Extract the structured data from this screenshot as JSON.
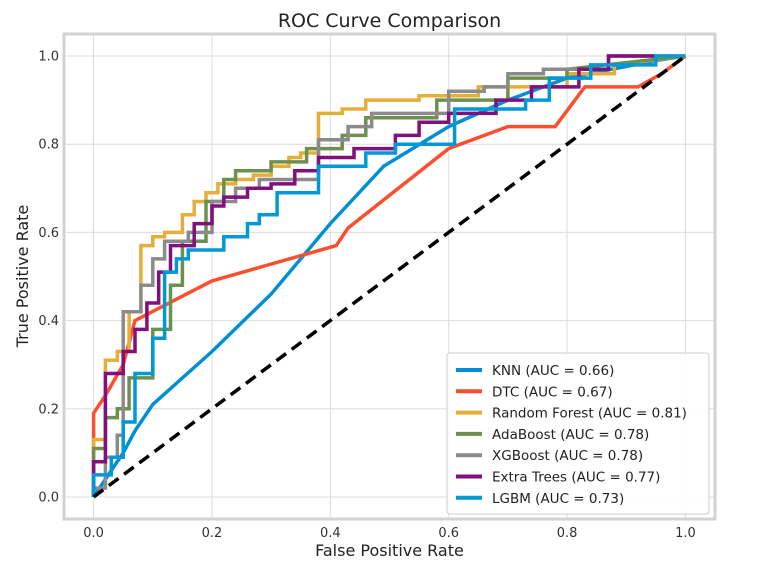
{
  "chart_data": {
    "type": "line",
    "title": "ROC Curve Comparison",
    "xlabel": "False Positive Rate",
    "ylabel": "True Positive Rate",
    "xlim": [
      -0.05,
      1.05
    ],
    "ylim": [
      -0.05,
      1.05
    ],
    "grid": true,
    "legend_position": "lower-right",
    "x_ticks": [
      "0.0",
      "0.2",
      "0.4",
      "0.6",
      "0.8",
      "1.0"
    ],
    "y_ticks": [
      "0.0",
      "0.2",
      "0.4",
      "0.6",
      "0.8",
      "1.0"
    ],
    "diagonal": {
      "x": [
        0,
        1
      ],
      "y": [
        0,
        1
      ],
      "color": "#000000",
      "style": "dashed"
    },
    "series": [
      {
        "name": "KNN (AUC = 0.66)",
        "color": "#008fd5",
        "x": [
          0,
          0.03,
          0.05,
          0.07,
          0.1,
          0.2,
          0.3,
          0.4,
          0.49,
          0.6,
          0.7,
          0.8,
          0.95,
          1.0
        ],
        "y": [
          0,
          0.06,
          0.1,
          0.15,
          0.21,
          0.33,
          0.46,
          0.62,
          0.75,
          0.84,
          0.9,
          0.95,
          0.99,
          1.0
        ]
      },
      {
        "name": "DTC (AUC = 0.67)",
        "color": "#fc4f30",
        "x": [
          0,
          0,
          0.02,
          0.05,
          0.07,
          0.2,
          0.41,
          0.43,
          0.6,
          0.7,
          0.78,
          0.83,
          0.92,
          0.96,
          1.0
        ],
        "y": [
          0,
          0.19,
          0.23,
          0.3,
          0.4,
          0.49,
          0.57,
          0.61,
          0.79,
          0.84,
          0.84,
          0.93,
          0.93,
          0.96,
          1.0
        ]
      },
      {
        "name": "Random Forest (AUC = 0.81)",
        "color": "#e5ae38",
        "x": [
          0,
          0,
          0.02,
          0.02,
          0.04,
          0.04,
          0.06,
          0.06,
          0.08,
          0.08,
          0.1,
          0.1,
          0.12,
          0.12,
          0.15,
          0.15,
          0.17,
          0.17,
          0.19,
          0.19,
          0.21,
          0.21,
          0.24,
          0.24,
          0.27,
          0.27,
          0.3,
          0.3,
          0.33,
          0.33,
          0.35,
          0.35,
          0.38,
          0.38,
          0.42,
          0.42,
          0.46,
          0.46,
          0.55,
          0.55,
          0.65,
          0.65,
          0.8,
          0.8,
          0.88,
          0.88,
          1.0
        ],
        "y": [
          0,
          0.13,
          0.13,
          0.31,
          0.31,
          0.33,
          0.33,
          0.42,
          0.42,
          0.57,
          0.57,
          0.59,
          0.59,
          0.6,
          0.6,
          0.64,
          0.64,
          0.67,
          0.67,
          0.69,
          0.69,
          0.71,
          0.71,
          0.72,
          0.72,
          0.73,
          0.73,
          0.75,
          0.75,
          0.77,
          0.77,
          0.78,
          0.78,
          0.87,
          0.87,
          0.88,
          0.88,
          0.9,
          0.9,
          0.91,
          0.91,
          0.93,
          0.93,
          0.96,
          0.96,
          0.98,
          1.0
        ]
      },
      {
        "name": "AdaBoost (AUC = 0.78)",
        "color": "#6d904f",
        "x": [
          0,
          0,
          0.02,
          0.02,
          0.04,
          0.04,
          0.06,
          0.06,
          0.1,
          0.1,
          0.13,
          0.13,
          0.15,
          0.15,
          0.19,
          0.19,
          0.22,
          0.22,
          0.24,
          0.24,
          0.3,
          0.3,
          0.36,
          0.36,
          0.42,
          0.42,
          0.46,
          0.46,
          0.58,
          0.58,
          0.7,
          0.7,
          0.8,
          0.8,
          1.0
        ],
        "y": [
          0,
          0.11,
          0.11,
          0.18,
          0.18,
          0.2,
          0.2,
          0.27,
          0.27,
          0.38,
          0.38,
          0.48,
          0.48,
          0.58,
          0.58,
          0.67,
          0.67,
          0.72,
          0.72,
          0.74,
          0.74,
          0.76,
          0.76,
          0.79,
          0.79,
          0.82,
          0.82,
          0.86,
          0.86,
          0.9,
          0.9,
          0.95,
          0.95,
          0.97,
          1.0
        ]
      },
      {
        "name": "XGBoost (AUC = 0.78)",
        "color": "#8b8b8b",
        "x": [
          0,
          0,
          0.02,
          0.02,
          0.04,
          0.04,
          0.05,
          0.05,
          0.08,
          0.08,
          0.1,
          0.1,
          0.12,
          0.12,
          0.16,
          0.16,
          0.2,
          0.2,
          0.24,
          0.24,
          0.28,
          0.28,
          0.38,
          0.38,
          0.43,
          0.43,
          0.47,
          0.47,
          0.6,
          0.6,
          0.66,
          0.66,
          0.7,
          0.7,
          0.76,
          0.76,
          0.87,
          0.87,
          1.0
        ],
        "y": [
          0,
          0.02,
          0.02,
          0.09,
          0.09,
          0.14,
          0.14,
          0.42,
          0.42,
          0.48,
          0.48,
          0.54,
          0.54,
          0.58,
          0.58,
          0.6,
          0.6,
          0.67,
          0.67,
          0.7,
          0.7,
          0.72,
          0.72,
          0.81,
          0.81,
          0.84,
          0.84,
          0.87,
          0.87,
          0.92,
          0.92,
          0.93,
          0.93,
          0.96,
          0.96,
          0.97,
          0.97,
          1.0,
          1.0
        ]
      },
      {
        "name": "Extra Trees (AUC = 0.77)",
        "color": "#810f7c",
        "x": [
          0,
          0,
          0.02,
          0.02,
          0.05,
          0.05,
          0.07,
          0.07,
          0.09,
          0.09,
          0.11,
          0.11,
          0.13,
          0.13,
          0.17,
          0.17,
          0.2,
          0.2,
          0.22,
          0.22,
          0.26,
          0.26,
          0.3,
          0.3,
          0.34,
          0.34,
          0.38,
          0.38,
          0.44,
          0.44,
          0.51,
          0.51,
          0.55,
          0.55,
          0.6,
          0.6,
          0.68,
          0.68,
          0.74,
          0.74,
          0.82,
          0.82,
          0.87,
          0.87,
          0.95
        ],
        "y": [
          0,
          0.08,
          0.08,
          0.28,
          0.28,
          0.33,
          0.33,
          0.38,
          0.38,
          0.44,
          0.44,
          0.51,
          0.51,
          0.57,
          0.57,
          0.62,
          0.62,
          0.66,
          0.66,
          0.68,
          0.68,
          0.7,
          0.7,
          0.71,
          0.71,
          0.74,
          0.74,
          0.77,
          0.77,
          0.79,
          0.79,
          0.82,
          0.82,
          0.85,
          0.85,
          0.87,
          0.87,
          0.9,
          0.9,
          0.93,
          0.93,
          0.97,
          0.97,
          1.0,
          1.0
        ]
      },
      {
        "name": "LGBM (AUC = 0.73)",
        "color": "#0099d6",
        "x": [
          0,
          0,
          0.03,
          0.03,
          0.05,
          0.05,
          0.07,
          0.07,
          0.1,
          0.1,
          0.12,
          0.12,
          0.14,
          0.14,
          0.16,
          0.16,
          0.22,
          0.22,
          0.26,
          0.26,
          0.28,
          0.28,
          0.31,
          0.31,
          0.38,
          0.38,
          0.46,
          0.46,
          0.51,
          0.51,
          0.61,
          0.61,
          0.73,
          0.73,
          0.77,
          0.77,
          0.84,
          0.84,
          0.95,
          0.95,
          1.0
        ],
        "y": [
          0,
          0.05,
          0.05,
          0.09,
          0.09,
          0.17,
          0.17,
          0.28,
          0.28,
          0.36,
          0.36,
          0.51,
          0.51,
          0.54,
          0.54,
          0.56,
          0.56,
          0.59,
          0.59,
          0.62,
          0.62,
          0.64,
          0.64,
          0.69,
          0.69,
          0.75,
          0.75,
          0.78,
          0.78,
          0.8,
          0.8,
          0.88,
          0.88,
          0.9,
          0.9,
          0.95,
          0.95,
          0.98,
          0.98,
          1.0,
          1.0
        ]
      }
    ]
  }
}
